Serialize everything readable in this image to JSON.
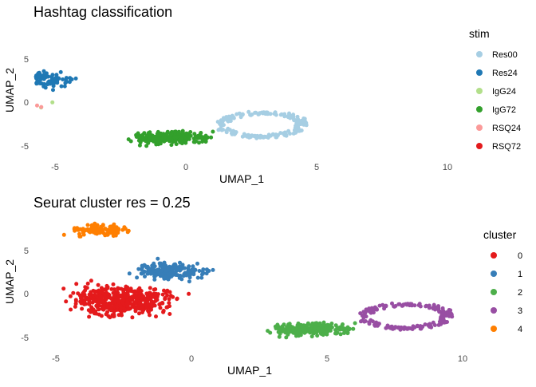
{
  "chart_data": [
    {
      "type": "scatter",
      "title": "Hashtag classification",
      "xlabel": "UMAP_1",
      "ylabel": "UMAP_2",
      "xlim": [
        -5.3,
        9.9
      ],
      "ylim": [
        -6.0,
        8.5
      ],
      "x_ticks": [
        -5,
        0,
        5,
        10
      ],
      "y_ticks": [
        -5,
        0,
        5
      ],
      "grid": false,
      "legend_title": "stim",
      "legend_position": "right",
      "series": [
        {
          "name": "Res00",
          "color": "#A6CEE3",
          "cluster_ref": 4,
          "fraction": 0.85
        },
        {
          "name": "Res24",
          "color": "#1F78B4",
          "cluster_ref": 1,
          "fraction": 0.85
        },
        {
          "name": "IgG24",
          "color": "#B2DF8A",
          "cluster_ref": 0,
          "fraction": 0.42
        },
        {
          "name": "IgG72",
          "color": "#33A02C",
          "cluster_ref": 2,
          "fraction": 0.92
        },
        {
          "name": "RSQ24",
          "color": "#FB9A99",
          "cluster_ref": 0,
          "fraction": 0.45
        },
        {
          "name": "RSQ72",
          "color": "#E31A1C",
          "cluster_ref": 0,
          "fraction": 0.06
        }
      ]
    },
    {
      "type": "scatter",
      "title": "Seurat cluster res = 0.25",
      "xlabel": "UMAP_1",
      "ylabel": "UMAP_2",
      "xlim": [
        -5.3,
        9.9
      ],
      "ylim": [
        -6.0,
        8.5
      ],
      "x_ticks": [
        -5,
        0,
        5,
        10
      ],
      "y_ticks": [
        -5,
        0,
        5
      ],
      "grid": false,
      "legend_title": "cluster",
      "legend_position": "right",
      "series": [
        {
          "name": "0",
          "color": "#E41A1C",
          "n": 470,
          "region": {
            "type": "blob",
            "cx": -2.6,
            "cy": -0.8,
            "rx": 2.8,
            "ry": 2.6,
            "tilt": -0.15
          }
        },
        {
          "name": "1",
          "color": "#377EB8",
          "n": 190,
          "region": {
            "type": "blob",
            "cx": -0.7,
            "cy": 2.6,
            "rx": 1.9,
            "ry": 1.4,
            "tilt": -0.35
          }
        },
        {
          "name": "2",
          "color": "#4DAF4A",
          "n": 280,
          "region": {
            "type": "blob",
            "cx": 4.3,
            "cy": -4.1,
            "rx": 2.0,
            "ry": 1.1,
            "tilt": 0.05
          }
        },
        {
          "name": "3",
          "color": "#984EA3",
          "n": 170,
          "region": {
            "type": "ring",
            "cx": 7.9,
            "cy": -2.6,
            "rx": 1.6,
            "ry": 1.4,
            "tilt": 0.25
          }
        },
        {
          "name": "4",
          "color": "#FF7F00",
          "n": 120,
          "region": {
            "type": "blob",
            "cx": -3.4,
            "cy": 7.3,
            "rx": 1.5,
            "ry": 0.9,
            "tilt": 0.05
          }
        }
      ]
    }
  ]
}
